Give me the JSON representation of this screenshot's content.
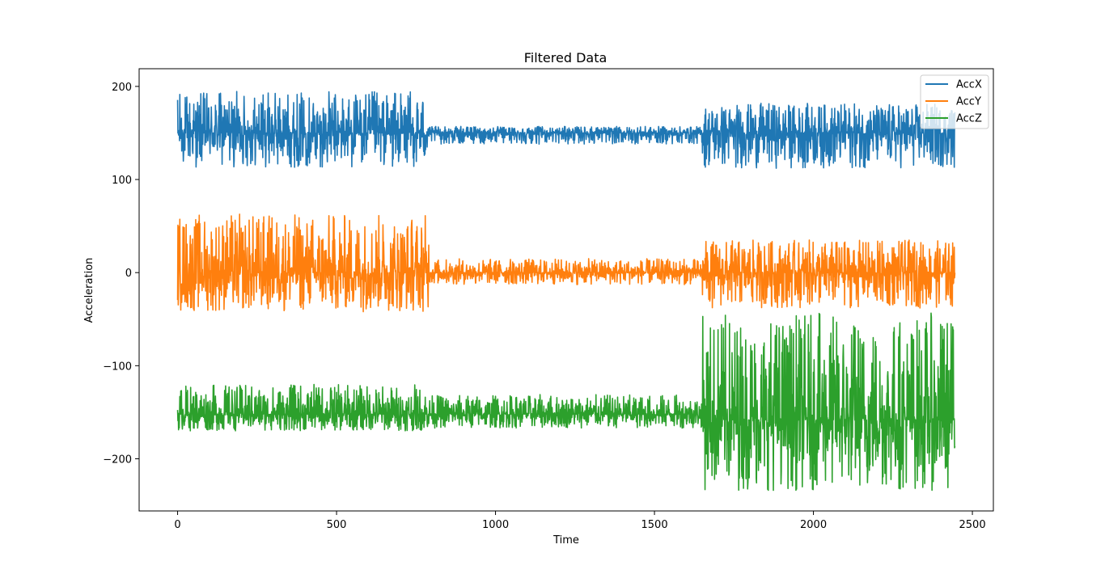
{
  "chart_data": {
    "type": "line",
    "title": "Filtered Data",
    "xlabel": "Time",
    "ylabel": "Acceleration",
    "xlim": [
      -121,
      2566
    ],
    "ylim": [
      -256,
      219
    ],
    "x_ticks": [
      0,
      500,
      1000,
      1500,
      2000,
      2500
    ],
    "x_tick_labels": [
      "0",
      "500",
      "1000",
      "1500",
      "2000",
      "2500"
    ],
    "y_ticks": [
      200,
      100,
      0,
      -100,
      -200
    ],
    "y_tick_labels": [
      "200",
      "100",
      "0",
      "−100",
      "−200"
    ],
    "grid": false,
    "legend_position": "top-right",
    "series": [
      {
        "name": "AccX",
        "color": "#1f77b4",
        "x_range": [
          0,
          2445
        ],
        "segments": [
          {
            "from": 0,
            "to": 790,
            "center": 150,
            "low": 113,
            "high": 195
          },
          {
            "from": 790,
            "to": 1650,
            "center": 150,
            "low": 138,
            "high": 157
          },
          {
            "from": 1650,
            "to": 2445,
            "center": 150,
            "low": 112,
            "high": 182
          }
        ]
      },
      {
        "name": "AccY",
        "color": "#ff7f0e",
        "x_range": [
          0,
          2445
        ],
        "segments": [
          {
            "from": 0,
            "to": 790,
            "center": 0,
            "low": -42,
            "high": 64
          },
          {
            "from": 790,
            "to": 1650,
            "center": 0,
            "low": -13,
            "high": 15
          },
          {
            "from": 1650,
            "to": 2445,
            "center": 0,
            "low": -38,
            "high": 35
          }
        ]
      },
      {
        "name": "AccZ",
        "color": "#2ca02c",
        "x_range": [
          0,
          2445
        ],
        "segments": [
          {
            "from": 0,
            "to": 790,
            "center": -152,
            "low": -170,
            "high": -120
          },
          {
            "from": 790,
            "to": 1650,
            "center": -152,
            "low": -167,
            "high": -131
          },
          {
            "from": 1650,
            "to": 2445,
            "center": -158,
            "low": -234,
            "high": -43
          }
        ]
      }
    ]
  }
}
